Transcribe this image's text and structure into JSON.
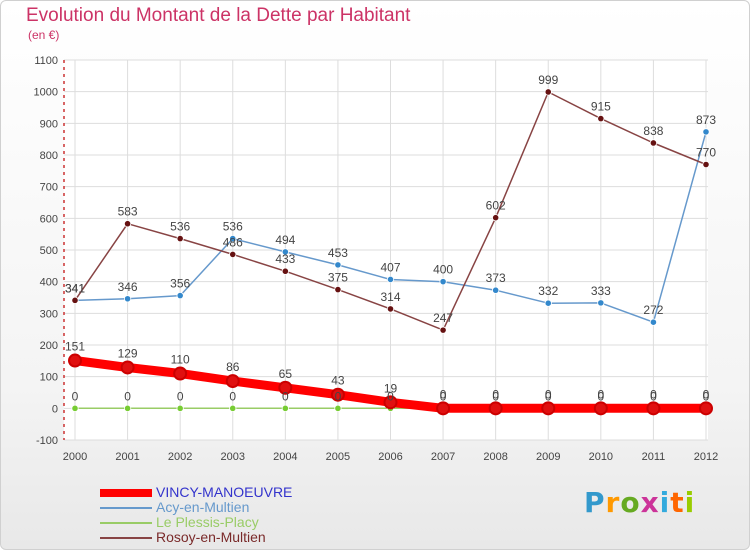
{
  "title": "Evolution du Montant de la Dette par Habitant",
  "unit": "(en €)",
  "brand": "Proxiti",
  "brand_colors": [
    "#3399cc",
    "#ff9900",
    "#66aa22",
    "#cc3399",
    "#33aadd",
    "#ff6600",
    "#99cc00"
  ],
  "chart_data": {
    "type": "line",
    "title": "Evolution du Montant de la Dette par Habitant",
    "ylabel": "(en €)",
    "xlabel": "",
    "x": [
      "2000",
      "2001",
      "2002",
      "2003",
      "2004",
      "2005",
      "2006",
      "2007",
      "2008",
      "2009",
      "2010",
      "2011",
      "2012"
    ],
    "ylim": [
      -100,
      1100
    ],
    "yticks": [
      "-100",
      "0",
      "100",
      "200",
      "300",
      "400",
      "500",
      "600",
      "700",
      "800",
      "900",
      "1000",
      "1100"
    ],
    "grid": true,
    "legend_position": "bottom-left",
    "series": [
      {
        "name": "VINCY-MANOEUVRE",
        "color": "#ff0000",
        "marker_color": "#e01010",
        "emphasis": true,
        "values": [
          151,
          129,
          110,
          86,
          65,
          43,
          19,
          0,
          0,
          0,
          0,
          0,
          0
        ],
        "labels": [
          "151",
          "129",
          "110",
          "86",
          "65",
          "43",
          "19",
          "0",
          "0",
          "0",
          "0",
          "0",
          "0"
        ]
      },
      {
        "name": "Acy-en-Multien",
        "color": "#6699cc",
        "marker_color": "#3388cc",
        "emphasis": false,
        "values": [
          341,
          346,
          356,
          536,
          494,
          453,
          407,
          400,
          373,
          332,
          333,
          272,
          873
        ],
        "labels": [
          "341",
          "346",
          "356",
          "536",
          "494",
          "453",
          "407",
          "400",
          "373",
          "332",
          "333",
          "272",
          "873"
        ]
      },
      {
        "name": "Le Plessis-Placy",
        "color": "#99cc66",
        "marker_color": "#77cc33",
        "emphasis": false,
        "values": [
          0,
          0,
          0,
          0,
          0,
          0,
          0,
          0,
          0,
          0,
          0,
          0,
          0
        ],
        "labels": [
          "0",
          "0",
          "0",
          "0",
          "0",
          "0",
          "0",
          "0",
          "0",
          "0",
          "0",
          "0",
          "0"
        ]
      },
      {
        "name": "Rosoy-en-Multien",
        "color": "#884444",
        "marker_color": "#661111",
        "emphasis": false,
        "values": [
          341,
          583,
          536,
          486,
          433,
          375,
          314,
          247,
          602,
          999,
          915,
          838,
          770
        ],
        "labels": [
          "341",
          "583",
          "536",
          "486",
          "433",
          "375",
          "314",
          "247",
          "602",
          "999",
          "915",
          "838",
          "770"
        ]
      }
    ]
  }
}
